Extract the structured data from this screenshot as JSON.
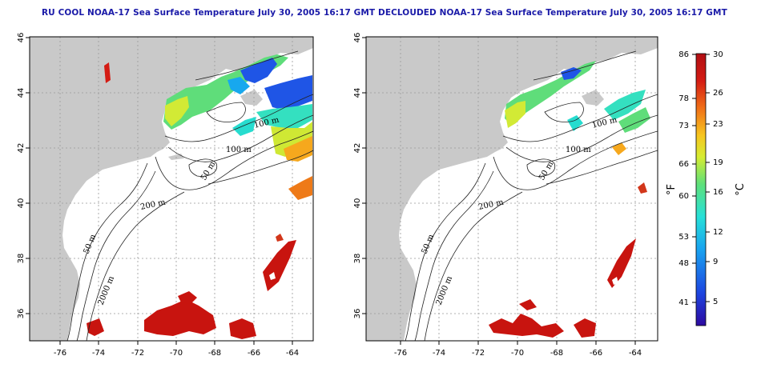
{
  "panels": [
    {
      "title": "RU COOL NOAA-17 Sea Surface Temperature July 30, 2005 16:17 GMT",
      "x_ticks": [
        "-76",
        "-74",
        "-72",
        "-70",
        "-68",
        "-66",
        "-64"
      ],
      "y_ticks": [
        "46",
        "44",
        "42",
        "40",
        "38",
        "36"
      ],
      "contour_labels": [
        "100 m",
        "100 m",
        "50 m",
        "200 m",
        "50 m",
        "2000 m"
      ]
    },
    {
      "title": "DECLOUDED NOAA-17 Sea Surface Temperature July 30, 2005 16:17 GMT",
      "x_ticks": [
        "-76",
        "-74",
        "-72",
        "-70",
        "-68",
        "-66",
        "-64"
      ],
      "y_ticks": [
        "46",
        "44",
        "42",
        "40",
        "38",
        "36"
      ],
      "contour_labels": [
        "100 m",
        "100 m",
        "50 m",
        "200 m",
        "50 m",
        "2000 m"
      ]
    }
  ],
  "colorbar": {
    "fahrenheit_label": "°F",
    "celsius_label": "°C",
    "fahrenheit_ticks": [
      "86",
      "78",
      "73",
      "66",
      "60",
      "53",
      "48",
      "41"
    ],
    "celsius_ticks": [
      "30",
      "26",
      "23",
      "19",
      "16",
      "12",
      "9",
      "5"
    ],
    "colors": [
      "#2d0aa0",
      "#1d45e0",
      "#19a3f0",
      "#27e0d8",
      "#5ee07a",
      "#d6ec32",
      "#f7c51f",
      "#f06f17",
      "#d41c14",
      "#b10f14"
    ]
  },
  "colors": {
    "land": "#c9c9c9",
    "title": "#1a1aa8",
    "warm_sst": "#c8140f"
  }
}
